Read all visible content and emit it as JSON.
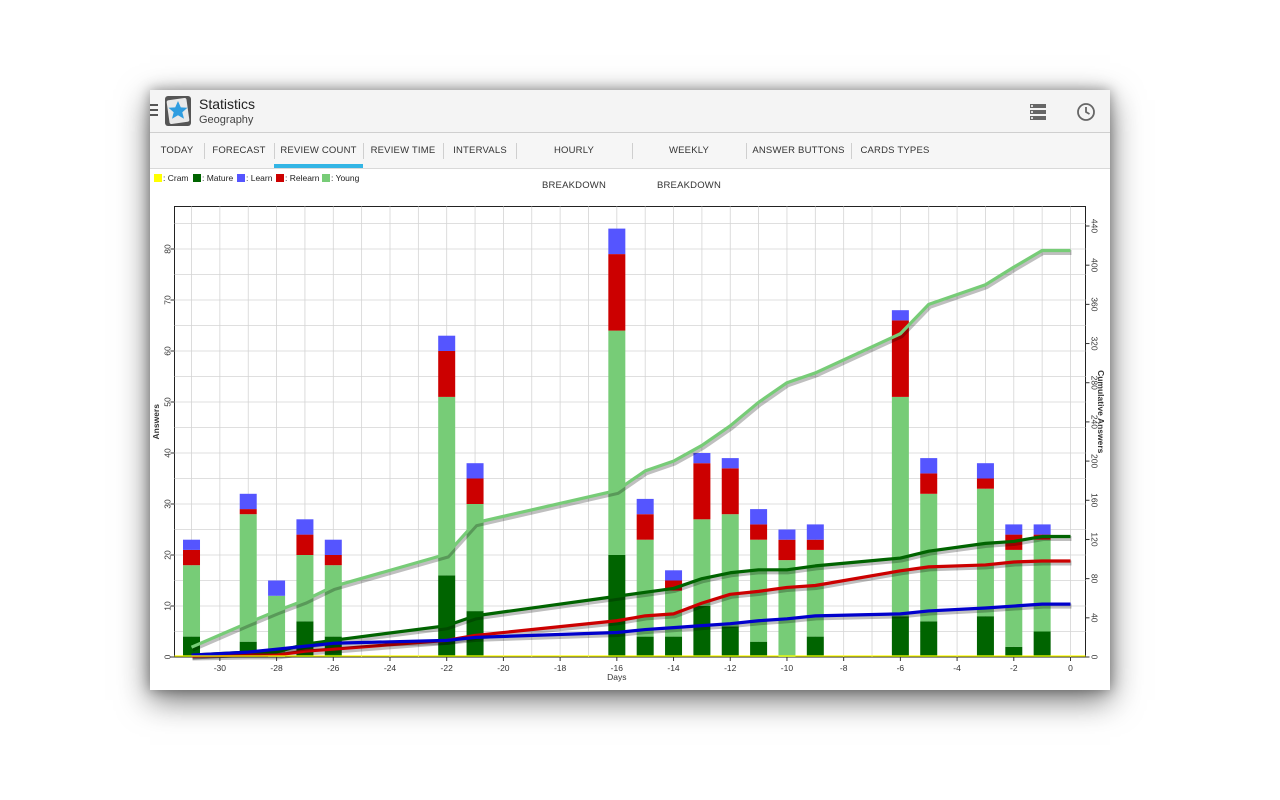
{
  "app": {
    "title": "Statistics",
    "subtitle": "Geography"
  },
  "actions": [
    {
      "name": "deck-list-icon"
    },
    {
      "name": "history-icon"
    }
  ],
  "tabs": [
    {
      "label": "TODAY"
    },
    {
      "label": "FORECAST"
    },
    {
      "label": "REVIEW COUNT",
      "active": true
    },
    {
      "label": "REVIEW TIME"
    },
    {
      "label": "INTERVALS"
    },
    {
      "label": "HOURLY BREAKDOWN"
    },
    {
      "label": "WEEKLY BREAKDOWN"
    },
    {
      "label": "ANSWER BUTTONS"
    },
    {
      "label": "CARDS TYPES"
    }
  ],
  "legend": [
    {
      "label": ": Cram",
      "color": "#ffff00"
    },
    {
      "label": ": Mature",
      "color": "#006400"
    },
    {
      "label": ": Learn",
      "color": "#5555ff"
    },
    {
      "label": ": Relearn",
      "color": "#cc0000"
    },
    {
      "label": ": Young",
      "color": "#77cc77"
    }
  ],
  "chart_data": {
    "type": "bar",
    "stacked": true,
    "xlabel": "Days",
    "ylabel": "Answers",
    "y2label": "Cumulative Answers",
    "xlim": [
      -31,
      0
    ],
    "ylim": [
      0,
      88
    ],
    "y2lim": [
      0,
      440
    ],
    "xticks": [
      -30,
      -28,
      -26,
      -24,
      -22,
      -20,
      -18,
      -16,
      -14,
      -12,
      -10,
      -8,
      -6,
      -4,
      -2,
      0
    ],
    "yticks": [
      0,
      10,
      20,
      30,
      40,
      50,
      60,
      70,
      80
    ],
    "y2ticks": [
      0,
      40,
      80,
      120,
      160,
      200,
      240,
      280,
      320,
      360,
      400,
      440
    ],
    "grid": true,
    "colors": {
      "mature": "#006400",
      "young": "#77cc77",
      "relearn": "#cc0000",
      "learn": "#5555ff",
      "cram": "#ffff00"
    },
    "bars": [
      {
        "day": -31,
        "mature": 4,
        "young": 14,
        "relearn": 3,
        "learn": 2
      },
      {
        "day": -29,
        "mature": 3,
        "young": 25,
        "relearn": 1,
        "learn": 3
      },
      {
        "day": -28,
        "mature": 0,
        "young": 12,
        "relearn": 0,
        "learn": 3
      },
      {
        "day": -27,
        "mature": 7,
        "young": 13,
        "relearn": 4,
        "learn": 3
      },
      {
        "day": -26,
        "mature": 4,
        "young": 14,
        "relearn": 2,
        "learn": 3
      },
      {
        "day": -22,
        "mature": 16,
        "young": 35,
        "relearn": 9,
        "learn": 3
      },
      {
        "day": -21,
        "mature": 9,
        "young": 21,
        "relearn": 5,
        "learn": 3
      },
      {
        "day": -16,
        "mature": 20,
        "young": 44,
        "relearn": 15,
        "learn": 5
      },
      {
        "day": -15,
        "mature": 4,
        "young": 19,
        "relearn": 5,
        "learn": 3
      },
      {
        "day": -14,
        "mature": 4,
        "young": 9,
        "relearn": 2,
        "learn": 2
      },
      {
        "day": -13,
        "mature": 10,
        "young": 17,
        "relearn": 11,
        "learn": 2
      },
      {
        "day": -12,
        "mature": 6,
        "young": 22,
        "relearn": 9,
        "learn": 2
      },
      {
        "day": -11,
        "mature": 3,
        "young": 20,
        "relearn": 3,
        "learn": 3
      },
      {
        "day": -10,
        "mature": 0,
        "young": 19,
        "relearn": 4,
        "learn": 2
      },
      {
        "day": -9,
        "mature": 4,
        "young": 17,
        "relearn": 2,
        "learn": 3
      },
      {
        "day": -6,
        "mature": 8,
        "young": 43,
        "relearn": 15,
        "learn": 2
      },
      {
        "day": -5,
        "mature": 7,
        "young": 25,
        "relearn": 4,
        "learn": 3
      },
      {
        "day": -3,
        "mature": 8,
        "young": 25,
        "relearn": 2,
        "learn": 3
      },
      {
        "day": -2,
        "mature": 2,
        "young": 19,
        "relearn": 3,
        "learn": 2
      },
      {
        "day": -1,
        "mature": 5,
        "young": 18,
        "relearn": 1,
        "learn": 2
      }
    ],
    "cumulative_series": [
      {
        "key": "total",
        "color": "#77cc77",
        "points": [
          [
            -31,
            10
          ],
          [
            -29,
            35
          ],
          [
            -28,
            47
          ],
          [
            -27,
            58
          ],
          [
            -26,
            72
          ],
          [
            -22,
            105
          ],
          [
            -21,
            137
          ],
          [
            -16,
            170
          ],
          [
            -15,
            190
          ],
          [
            -14,
            200
          ],
          [
            -13,
            216
          ],
          [
            -12,
            236
          ],
          [
            -11,
            260
          ],
          [
            -10,
            280
          ],
          [
            -9,
            290
          ],
          [
            -6,
            330
          ],
          [
            -5,
            360
          ],
          [
            -3,
            380
          ],
          [
            -2,
            398
          ],
          [
            -1,
            415
          ],
          [
            0,
            415
          ]
        ]
      },
      {
        "key": "mature",
        "color": "#006400",
        "points": [
          [
            -31,
            2
          ],
          [
            -29,
            5
          ],
          [
            -28,
            5
          ],
          [
            -27,
            13
          ],
          [
            -26,
            17
          ],
          [
            -22,
            32
          ],
          [
            -21,
            42
          ],
          [
            -16,
            62
          ],
          [
            -15,
            66
          ],
          [
            -14,
            70
          ],
          [
            -13,
            80
          ],
          [
            -12,
            86
          ],
          [
            -11,
            89
          ],
          [
            -10,
            89
          ],
          [
            -9,
            93
          ],
          [
            -6,
            101
          ],
          [
            -5,
            108
          ],
          [
            -3,
            116
          ],
          [
            -2,
            118
          ],
          [
            -1,
            123
          ],
          [
            0,
            123
          ]
        ]
      },
      {
        "key": "relearn",
        "color": "#cc0000",
        "points": [
          [
            -31,
            1
          ],
          [
            -29,
            2
          ],
          [
            -28,
            2
          ],
          [
            -27,
            6
          ],
          [
            -26,
            8
          ],
          [
            -22,
            17
          ],
          [
            -21,
            22
          ],
          [
            -16,
            37
          ],
          [
            -15,
            42
          ],
          [
            -14,
            44
          ],
          [
            -13,
            55
          ],
          [
            -12,
            64
          ],
          [
            -11,
            67
          ],
          [
            -10,
            71
          ],
          [
            -9,
            73
          ],
          [
            -6,
            88
          ],
          [
            -5,
            92
          ],
          [
            -3,
            94
          ],
          [
            -2,
            97
          ],
          [
            -1,
            98
          ],
          [
            0,
            98
          ]
        ]
      },
      {
        "key": "learn",
        "color": "#0000cc",
        "points": [
          [
            -31,
            2
          ],
          [
            -29,
            5
          ],
          [
            -28,
            8
          ],
          [
            -27,
            11
          ],
          [
            -26,
            14
          ],
          [
            -22,
            17
          ],
          [
            -21,
            20
          ],
          [
            -16,
            25
          ],
          [
            -15,
            28
          ],
          [
            -14,
            30
          ],
          [
            -13,
            32
          ],
          [
            -12,
            34
          ],
          [
            -11,
            37
          ],
          [
            -10,
            39
          ],
          [
            -9,
            42
          ],
          [
            -6,
            44
          ],
          [
            -5,
            47
          ],
          [
            -3,
            50
          ],
          [
            -2,
            52
          ],
          [
            -1,
            54
          ],
          [
            0,
            54
          ]
        ]
      }
    ]
  }
}
